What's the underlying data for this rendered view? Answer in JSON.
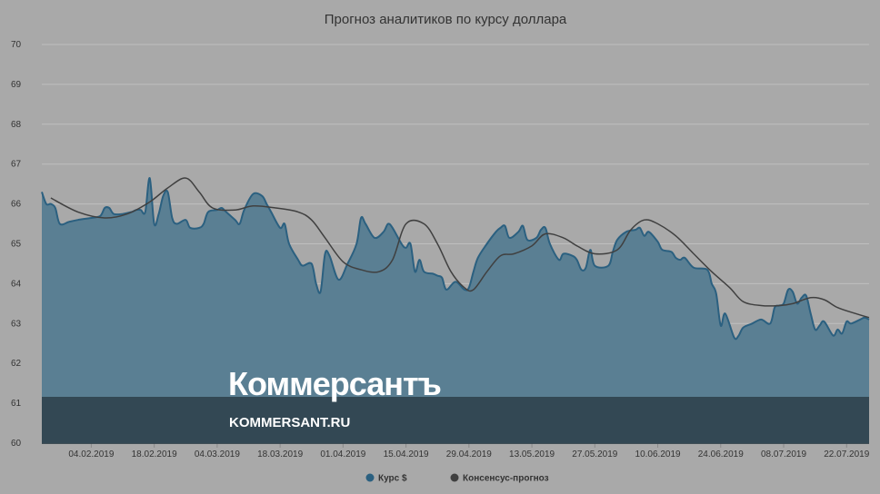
{
  "chart_data": {
    "type": "area",
    "title": "Прогноз аналитиков по курсу доллара",
    "ylim": [
      60,
      70
    ],
    "yticks": [
      "60",
      "61",
      "62",
      "63",
      "64",
      "65",
      "66",
      "67",
      "68",
      "69",
      "70"
    ],
    "xlim": [
      "2019-01-24",
      "2019-07-27"
    ],
    "xticks": [
      "04.02.2019",
      "18.02.2019",
      "04.03.2019",
      "18.03.2019",
      "01.04.2019",
      "15.04.2019",
      "29.04.2019",
      "13.05.2019",
      "27.05.2019",
      "10.06.2019",
      "24.06.2019",
      "08.07.2019",
      "22.07.2019"
    ],
    "grid": true,
    "legend_position": "bottom-center",
    "series": [
      {
        "name": "Курс $",
        "color": "#2b6080",
        "fill": "#5a7f93",
        "points": [
          [
            "2019-01-24",
            66.3
          ],
          [
            "2019-01-25",
            66.0
          ],
          [
            "2019-01-26",
            66.0
          ],
          [
            "2019-01-27",
            65.9
          ],
          [
            "2019-01-28",
            65.5
          ],
          [
            "2019-01-30",
            65.55
          ],
          [
            "2019-02-01",
            65.6
          ],
          [
            "2019-02-04",
            65.65
          ],
          [
            "2019-02-06",
            65.7
          ],
          [
            "2019-02-07",
            65.9
          ],
          [
            "2019-02-08",
            65.9
          ],
          [
            "2019-02-09",
            65.75
          ],
          [
            "2019-02-11",
            65.75
          ],
          [
            "2019-02-13",
            65.8
          ],
          [
            "2019-02-14",
            65.85
          ],
          [
            "2019-02-15",
            65.85
          ],
          [
            "2019-02-16",
            65.8
          ],
          [
            "2019-02-17",
            66.65
          ],
          [
            "2019-02-18",
            65.5
          ],
          [
            "2019-02-19",
            65.75
          ],
          [
            "2019-02-20",
            66.2
          ],
          [
            "2019-02-21",
            66.3
          ],
          [
            "2019-02-22",
            65.65
          ],
          [
            "2019-02-23",
            65.5
          ],
          [
            "2019-02-25",
            65.6
          ],
          [
            "2019-02-26",
            65.4
          ],
          [
            "2019-02-28",
            65.4
          ],
          [
            "2019-03-01",
            65.5
          ],
          [
            "2019-03-02",
            65.8
          ],
          [
            "2019-03-04",
            65.85
          ],
          [
            "2019-03-05",
            65.9
          ],
          [
            "2019-03-06",
            65.8
          ],
          [
            "2019-03-08",
            65.6
          ],
          [
            "2019-03-09",
            65.5
          ],
          [
            "2019-03-10",
            65.85
          ],
          [
            "2019-03-12",
            66.25
          ],
          [
            "2019-03-14",
            66.2
          ],
          [
            "2019-03-15",
            66.0
          ],
          [
            "2019-03-16",
            65.8
          ],
          [
            "2019-03-18",
            65.4
          ],
          [
            "2019-03-19",
            65.5
          ],
          [
            "2019-03-20",
            65.0
          ],
          [
            "2019-03-22",
            64.6
          ],
          [
            "2019-03-23",
            64.45
          ],
          [
            "2019-03-25",
            64.5
          ],
          [
            "2019-03-26",
            64.0
          ],
          [
            "2019-03-27",
            63.8
          ],
          [
            "2019-03-28",
            64.75
          ],
          [
            "2019-03-29",
            64.7
          ],
          [
            "2019-03-31",
            64.1
          ],
          [
            "2019-04-02",
            64.5
          ],
          [
            "2019-04-04",
            65.0
          ],
          [
            "2019-04-05",
            65.65
          ],
          [
            "2019-04-06",
            65.5
          ],
          [
            "2019-04-08",
            65.15
          ],
          [
            "2019-04-10",
            65.3
          ],
          [
            "2019-04-11",
            65.5
          ],
          [
            "2019-04-12",
            65.4
          ],
          [
            "2019-04-14",
            65.0
          ],
          [
            "2019-04-15",
            64.9
          ],
          [
            "2019-04-16",
            65.0
          ],
          [
            "2019-04-17",
            64.3
          ],
          [
            "2019-04-18",
            64.6
          ],
          [
            "2019-04-19",
            64.3
          ],
          [
            "2019-04-21",
            64.25
          ],
          [
            "2019-04-22",
            64.2
          ],
          [
            "2019-04-23",
            64.15
          ],
          [
            "2019-04-24",
            63.85
          ],
          [
            "2019-04-26",
            64.05
          ],
          [
            "2019-04-28",
            63.85
          ],
          [
            "2019-04-29",
            63.9
          ],
          [
            "2019-04-30",
            64.3
          ],
          [
            "2019-05-01",
            64.65
          ],
          [
            "2019-05-03",
            65.0
          ],
          [
            "2019-05-05",
            65.3
          ],
          [
            "2019-05-06",
            65.4
          ],
          [
            "2019-05-07",
            65.45
          ],
          [
            "2019-05-08",
            65.15
          ],
          [
            "2019-05-10",
            65.3
          ],
          [
            "2019-05-11",
            65.45
          ],
          [
            "2019-05-12",
            65.1
          ],
          [
            "2019-05-14",
            65.15
          ],
          [
            "2019-05-15",
            65.35
          ],
          [
            "2019-05-16",
            65.4
          ],
          [
            "2019-05-17",
            65.0
          ],
          [
            "2019-05-19",
            64.6
          ],
          [
            "2019-05-20",
            64.75
          ],
          [
            "2019-05-22",
            64.7
          ],
          [
            "2019-05-23",
            64.6
          ],
          [
            "2019-05-24",
            64.35
          ],
          [
            "2019-05-25",
            64.4
          ],
          [
            "2019-05-26",
            64.85
          ],
          [
            "2019-05-27",
            64.45
          ],
          [
            "2019-05-30",
            64.45
          ],
          [
            "2019-05-31",
            64.8
          ],
          [
            "2019-06-01",
            65.1
          ],
          [
            "2019-06-03",
            65.3
          ],
          [
            "2019-06-05",
            65.35
          ],
          [
            "2019-06-06",
            65.4
          ],
          [
            "2019-06-07",
            65.2
          ],
          [
            "2019-06-08",
            65.3
          ],
          [
            "2019-06-10",
            65.05
          ],
          [
            "2019-06-11",
            64.85
          ],
          [
            "2019-06-13",
            64.8
          ],
          [
            "2019-06-14",
            64.65
          ],
          [
            "2019-06-15",
            64.6
          ],
          [
            "2019-06-16",
            64.65
          ],
          [
            "2019-06-18",
            64.4
          ],
          [
            "2019-06-21",
            64.35
          ],
          [
            "2019-06-22",
            64.0
          ],
          [
            "2019-06-23",
            63.75
          ],
          [
            "2019-06-24",
            62.95
          ],
          [
            "2019-06-25",
            63.25
          ],
          [
            "2019-06-27",
            62.65
          ],
          [
            "2019-06-28",
            62.7
          ],
          [
            "2019-06-29",
            62.9
          ],
          [
            "2019-07-01",
            63.0
          ],
          [
            "2019-07-03",
            63.1
          ],
          [
            "2019-07-05",
            63.0
          ],
          [
            "2019-07-06",
            63.4
          ],
          [
            "2019-07-07",
            63.45
          ],
          [
            "2019-07-08",
            63.5
          ],
          [
            "2019-07-09",
            63.85
          ],
          [
            "2019-07-10",
            63.8
          ],
          [
            "2019-07-11",
            63.5
          ],
          [
            "2019-07-12",
            63.65
          ],
          [
            "2019-07-13",
            63.7
          ],
          [
            "2019-07-14",
            63.25
          ],
          [
            "2019-07-15",
            62.85
          ],
          [
            "2019-07-16",
            62.95
          ],
          [
            "2019-07-17",
            63.05
          ],
          [
            "2019-07-19",
            62.7
          ],
          [
            "2019-07-20",
            62.85
          ],
          [
            "2019-07-21",
            62.75
          ],
          [
            "2019-07-22",
            63.05
          ],
          [
            "2019-07-23",
            63.0
          ],
          [
            "2019-07-25",
            63.1
          ],
          [
            "2019-07-26",
            63.15
          ],
          [
            "2019-07-27",
            63.1
          ]
        ]
      },
      {
        "name": "Консенсус-прогноз",
        "color": "#404040",
        "points": [
          [
            "2019-01-26",
            66.15
          ],
          [
            "2019-02-01",
            65.8
          ],
          [
            "2019-02-07",
            65.65
          ],
          [
            "2019-02-12",
            65.75
          ],
          [
            "2019-02-17",
            66.05
          ],
          [
            "2019-02-21",
            66.4
          ],
          [
            "2019-02-25",
            66.65
          ],
          [
            "2019-02-28",
            66.3
          ],
          [
            "2019-03-03",
            65.9
          ],
          [
            "2019-03-08",
            65.85
          ],
          [
            "2019-03-12",
            65.95
          ],
          [
            "2019-03-17",
            65.9
          ],
          [
            "2019-03-22",
            65.8
          ],
          [
            "2019-03-25",
            65.6
          ],
          [
            "2019-03-28",
            65.15
          ],
          [
            "2019-04-01",
            64.55
          ],
          [
            "2019-04-05",
            64.35
          ],
          [
            "2019-04-09",
            64.3
          ],
          [
            "2019-04-12",
            64.6
          ],
          [
            "2019-04-15",
            65.5
          ],
          [
            "2019-04-19",
            65.5
          ],
          [
            "2019-04-22",
            65.0
          ],
          [
            "2019-04-25",
            64.3
          ],
          [
            "2019-04-28",
            63.9
          ],
          [
            "2019-04-30",
            63.85
          ],
          [
            "2019-05-03",
            64.3
          ],
          [
            "2019-05-06",
            64.7
          ],
          [
            "2019-05-09",
            64.75
          ],
          [
            "2019-05-13",
            64.95
          ],
          [
            "2019-05-16",
            65.25
          ],
          [
            "2019-05-20",
            65.15
          ],
          [
            "2019-05-23",
            64.95
          ],
          [
            "2019-05-27",
            64.75
          ],
          [
            "2019-06-01",
            64.85
          ],
          [
            "2019-06-04",
            65.35
          ],
          [
            "2019-06-07",
            65.6
          ],
          [
            "2019-06-10",
            65.5
          ],
          [
            "2019-06-14",
            65.2
          ],
          [
            "2019-06-18",
            64.75
          ],
          [
            "2019-06-22",
            64.3
          ],
          [
            "2019-06-26",
            63.9
          ],
          [
            "2019-06-29",
            63.55
          ],
          [
            "2019-07-03",
            63.45
          ],
          [
            "2019-07-07",
            63.45
          ],
          [
            "2019-07-10",
            63.5
          ],
          [
            "2019-07-14",
            63.65
          ],
          [
            "2019-07-17",
            63.6
          ],
          [
            "2019-07-20",
            63.4
          ],
          [
            "2019-07-24",
            63.25
          ],
          [
            "2019-07-27",
            63.15
          ]
        ]
      }
    ]
  },
  "watermark": {
    "brand": "Коммерсантъ",
    "url": "KOMMERSANT.RU"
  }
}
